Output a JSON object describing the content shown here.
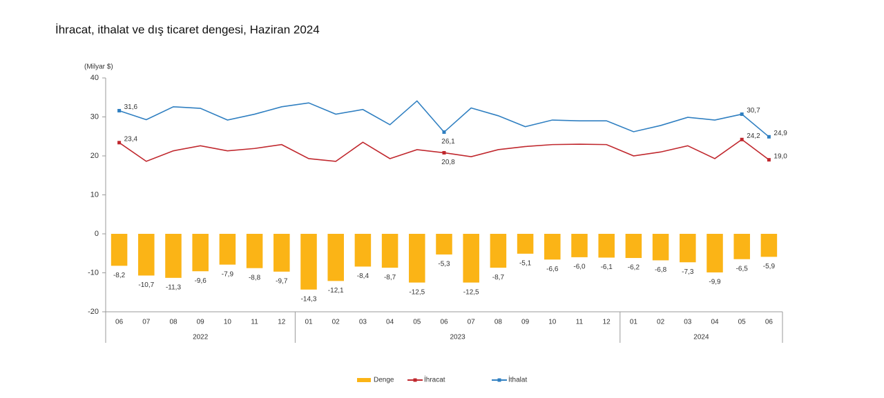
{
  "chart_data": {
    "type": "bar-line",
    "title": "İhracat, ithalat ve dış ticaret dengesi, Haziran 2024",
    "y_unit": "(Milyar $)",
    "categories": [
      "06",
      "07",
      "08",
      "09",
      "10",
      "11",
      "12",
      "01",
      "02",
      "03",
      "04",
      "05",
      "06",
      "07",
      "08",
      "09",
      "10",
      "11",
      "12",
      "01",
      "02",
      "03",
      "04",
      "05",
      "06"
    ],
    "x_groups": [
      {
        "label": "2022",
        "count": 7
      },
      {
        "label": "2023",
        "count": 12
      },
      {
        "label": "2024",
        "count": 6
      }
    ],
    "ylim": [
      -20,
      40
    ],
    "yticks": [
      -20,
      -10,
      0,
      10,
      20,
      30,
      40
    ],
    "series": [
      {
        "name": "Denge",
        "type": "bar",
        "color": "#fbb416",
        "values": [
          -8.2,
          -10.7,
          -11.3,
          -9.6,
          -7.9,
          -8.8,
          -9.7,
          -14.3,
          -12.1,
          -8.4,
          -8.7,
          -12.5,
          -5.3,
          -12.5,
          -8.7,
          -5.1,
          -6.6,
          -6.0,
          -6.1,
          -6.2,
          -6.8,
          -7.3,
          -9.9,
          -6.5,
          -5.9
        ],
        "value_labels": [
          "-8,2",
          "-10,7",
          "-11,3",
          "-9,6",
          "-7,9",
          "-8,8",
          "-9,7",
          "-14,3",
          "-12,1",
          "-8,4",
          "-8,7",
          "-12,5",
          "-5,3",
          "-12,5",
          "-8,7",
          "-5,1",
          "-6,6",
          "-6,0",
          "-6,1",
          "-6,2",
          "-6,8",
          "-7,3",
          "-9,9",
          "-6,5",
          "-5,9"
        ]
      },
      {
        "name": "İhracat",
        "type": "line",
        "color": "#c0272d",
        "values": [
          23.4,
          18.6,
          21.3,
          22.6,
          21.3,
          21.9,
          22.9,
          19.3,
          18.6,
          23.5,
          19.3,
          21.6,
          20.8,
          19.8,
          21.6,
          22.4,
          22.9,
          23.0,
          22.9,
          20.0,
          21.0,
          22.6,
          19.3,
          24.2,
          19.0
        ],
        "value_labels": [
          "23,4",
          null,
          null,
          null,
          null,
          null,
          null,
          null,
          null,
          null,
          null,
          null,
          "20,8",
          null,
          null,
          null,
          null,
          null,
          null,
          null,
          null,
          null,
          null,
          "24,2",
          "19,0"
        ]
      },
      {
        "name": "İthalat",
        "type": "line",
        "color": "#2f7fc1",
        "values": [
          31.6,
          29.3,
          32.6,
          32.2,
          29.2,
          30.7,
          32.6,
          33.6,
          30.7,
          31.9,
          28.0,
          34.1,
          26.1,
          32.3,
          30.3,
          27.5,
          29.2,
          29.0,
          29.0,
          26.2,
          27.8,
          29.9,
          29.2,
          30.7,
          24.9
        ],
        "value_labels": [
          "31,6",
          null,
          null,
          null,
          null,
          null,
          null,
          null,
          null,
          null,
          null,
          null,
          "26,1",
          null,
          null,
          null,
          null,
          null,
          null,
          null,
          null,
          null,
          null,
          "30,7",
          "24,9"
        ]
      }
    ]
  }
}
